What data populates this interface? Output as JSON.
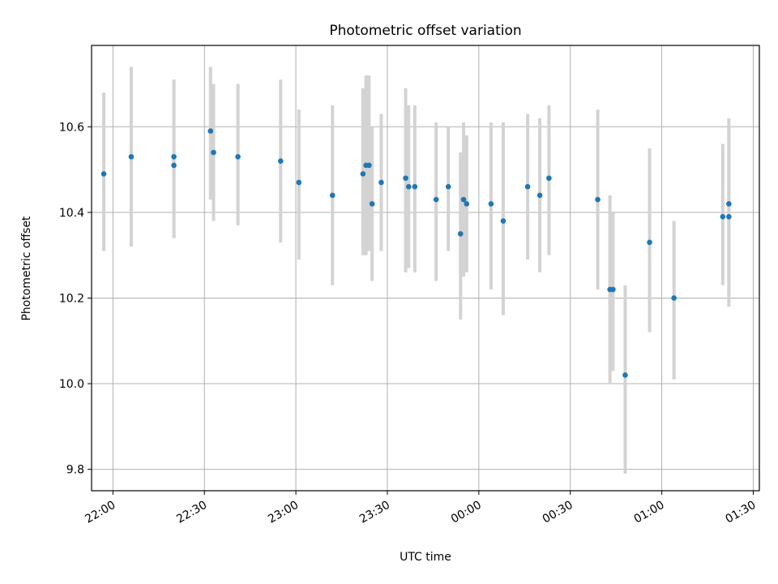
{
  "chart_data": {
    "type": "scatter",
    "title": "Photometric offset variation",
    "xlabel": "UTC time",
    "ylabel": "Photometric offset",
    "x_axis": {
      "kind": "time",
      "range": [
        "21:53",
        "01:32"
      ],
      "tick_minutes": [
        1320,
        1350,
        1380,
        1410,
        1440,
        1470,
        1500,
        1530
      ],
      "tick_labels": [
        "22:00",
        "22:30",
        "23:00",
        "23:30",
        "00:00",
        "00:30",
        "01:00",
        "01:30"
      ],
      "tick_rotation_deg": 30
    },
    "y_axis": {
      "range": [
        9.75,
        10.79
      ],
      "ticks": [
        9.8,
        10.0,
        10.2,
        10.4,
        10.6
      ],
      "tick_labels": [
        "9.8",
        "10.0",
        "10.2",
        "10.4",
        "10.6"
      ]
    },
    "grid": true,
    "colors": {
      "point": "#1f77b4",
      "errorbar": "#d3d3d3",
      "grid": "#b0b0b0"
    },
    "points": [
      {
        "t": "21:57",
        "y": 10.49,
        "lo": 10.31,
        "hi": 10.68
      },
      {
        "t": "22:06",
        "y": 10.53,
        "lo": 10.32,
        "hi": 10.74
      },
      {
        "t": "22:20",
        "y": 10.53,
        "lo": 10.36,
        "hi": 10.71
      },
      {
        "t": "22:20",
        "y": 10.51,
        "lo": 10.34,
        "hi": 10.71
      },
      {
        "t": "22:32",
        "y": 10.59,
        "lo": 10.43,
        "hi": 10.74
      },
      {
        "t": "22:33",
        "y": 10.54,
        "lo": 10.38,
        "hi": 10.7
      },
      {
        "t": "22:41",
        "y": 10.53,
        "lo": 10.37,
        "hi": 10.7
      },
      {
        "t": "22:55",
        "y": 10.52,
        "lo": 10.33,
        "hi": 10.71
      },
      {
        "t": "23:01",
        "y": 10.47,
        "lo": 10.29,
        "hi": 10.64
      },
      {
        "t": "23:12",
        "y": 10.44,
        "lo": 10.23,
        "hi": 10.65
      },
      {
        "t": "23:22",
        "y": 10.49,
        "lo": 10.3,
        "hi": 10.69
      },
      {
        "t": "23:23",
        "y": 10.51,
        "lo": 10.3,
        "hi": 10.72
      },
      {
        "t": "23:24",
        "y": 10.51,
        "lo": 10.31,
        "hi": 10.72
      },
      {
        "t": "23:25",
        "y": 10.42,
        "lo": 10.24,
        "hi": 10.6
      },
      {
        "t": "23:28",
        "y": 10.47,
        "lo": 10.31,
        "hi": 10.63
      },
      {
        "t": "23:36",
        "y": 10.48,
        "lo": 10.26,
        "hi": 10.69
      },
      {
        "t": "23:37",
        "y": 10.46,
        "lo": 10.27,
        "hi": 10.65
      },
      {
        "t": "23:39",
        "y": 10.46,
        "lo": 10.26,
        "hi": 10.65
      },
      {
        "t": "23:46",
        "y": 10.43,
        "lo": 10.24,
        "hi": 10.61
      },
      {
        "t": "23:50",
        "y": 10.46,
        "lo": 10.31,
        "hi": 10.6
      },
      {
        "t": "23:54",
        "y": 10.35,
        "lo": 10.15,
        "hi": 10.54
      },
      {
        "t": "23:55",
        "y": 10.43,
        "lo": 10.25,
        "hi": 10.61
      },
      {
        "t": "23:56",
        "y": 10.42,
        "lo": 10.26,
        "hi": 10.58
      },
      {
        "t": "00:04",
        "y": 10.42,
        "lo": 10.22,
        "hi": 10.61
      },
      {
        "t": "00:08",
        "y": 10.38,
        "lo": 10.16,
        "hi": 10.61
      },
      {
        "t": "00:16",
        "y": 10.46,
        "lo": 10.29,
        "hi": 10.63
      },
      {
        "t": "00:20",
        "y": 10.44,
        "lo": 10.26,
        "hi": 10.62
      },
      {
        "t": "00:23",
        "y": 10.48,
        "lo": 10.3,
        "hi": 10.65
      },
      {
        "t": "00:39",
        "y": 10.43,
        "lo": 10.22,
        "hi": 10.64
      },
      {
        "t": "00:43",
        "y": 10.22,
        "lo": 10.0,
        "hi": 10.44
      },
      {
        "t": "00:44",
        "y": 10.22,
        "lo": 10.03,
        "hi": 10.4
      },
      {
        "t": "00:48",
        "y": 10.02,
        "lo": 9.79,
        "hi": 10.23
      },
      {
        "t": "00:56",
        "y": 10.33,
        "lo": 10.12,
        "hi": 10.55
      },
      {
        "t": "01:04",
        "y": 10.2,
        "lo": 10.01,
        "hi": 10.38
      },
      {
        "t": "01:20",
        "y": 10.39,
        "lo": 10.23,
        "hi": 10.56
      },
      {
        "t": "01:22",
        "y": 10.42,
        "lo": 10.21,
        "hi": 10.62
      },
      {
        "t": "01:22",
        "y": 10.39,
        "lo": 10.18,
        "hi": 10.6
      }
    ]
  }
}
